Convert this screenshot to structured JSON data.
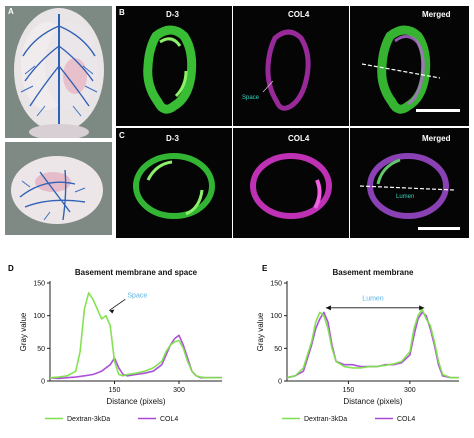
{
  "panels": {
    "A": "A",
    "B": "B",
    "C": "C",
    "D": "D",
    "E": "E"
  },
  "micro": {
    "row_b": [
      "D-3",
      "COL4",
      "Merged"
    ],
    "row_c": [
      "D-3",
      "COL4",
      "Merged"
    ],
    "space_label": "Space",
    "lumen_label": "Lumen"
  },
  "colors": {
    "dextran": "#7ee04a",
    "col4": "#a84ad6",
    "annotation": "#5ab4e6"
  },
  "chart_data": [
    {
      "type": "line",
      "title": "Basement membrane and space",
      "xlabel": "Distance (pixels)",
      "ylabel": "Gray value",
      "xlim": [
        0,
        400
      ],
      "ylim": [
        0,
        150
      ],
      "xticks": [
        150,
        300
      ],
      "yticks": [
        0,
        50,
        100,
        150
      ],
      "annotation": "Space",
      "series": [
        {
          "name": "Dextran-3kDa",
          "x": [
            0,
            20,
            40,
            60,
            70,
            80,
            90,
            100,
            110,
            120,
            130,
            140,
            150,
            160,
            170,
            180,
            200,
            220,
            240,
            260,
            270,
            280,
            290,
            300,
            310,
            320,
            330,
            340,
            350,
            360,
            380,
            400
          ],
          "y": [
            5,
            6,
            8,
            15,
            45,
            110,
            135,
            125,
            110,
            95,
            100,
            85,
            30,
            10,
            8,
            10,
            12,
            15,
            20,
            30,
            45,
            55,
            60,
            62,
            50,
            30,
            15,
            8,
            6,
            5,
            5,
            5
          ]
        },
        {
          "name": "COL4",
          "x": [
            0,
            20,
            40,
            60,
            80,
            100,
            120,
            140,
            150,
            160,
            170,
            180,
            200,
            220,
            240,
            260,
            270,
            280,
            290,
            300,
            310,
            320,
            330,
            340,
            350,
            360,
            380,
            400
          ],
          "y": [
            5,
            4,
            5,
            6,
            8,
            10,
            15,
            25,
            35,
            20,
            10,
            8,
            10,
            12,
            15,
            25,
            40,
            55,
            65,
            70,
            55,
            35,
            15,
            8,
            5,
            5,
            5,
            5
          ]
        }
      ],
      "legend": "bottom"
    },
    {
      "type": "line",
      "title": "Basement membrane",
      "xlabel": "Distance (pixels)",
      "ylabel": "Gray value",
      "xlim": [
        0,
        420
      ],
      "ylim": [
        0,
        150
      ],
      "xticks": [
        150,
        300
      ],
      "yticks": [
        0,
        50,
        100,
        150
      ],
      "annotation": "Lumen",
      "series": [
        {
          "name": "Dextran-3kDa",
          "x": [
            0,
            20,
            40,
            60,
            70,
            80,
            90,
            100,
            110,
            120,
            140,
            160,
            180,
            200,
            220,
            240,
            260,
            280,
            300,
            310,
            320,
            330,
            340,
            350,
            360,
            370,
            380,
            400,
            420
          ],
          "y": [
            5,
            8,
            20,
            60,
            90,
            105,
            100,
            80,
            50,
            30,
            22,
            20,
            20,
            22,
            22,
            24,
            26,
            30,
            45,
            80,
            100,
            110,
            95,
            85,
            60,
            30,
            10,
            5,
            5
          ]
        },
        {
          "name": "COL4",
          "x": [
            0,
            20,
            40,
            60,
            70,
            80,
            90,
            100,
            110,
            120,
            140,
            160,
            180,
            200,
            220,
            240,
            260,
            280,
            300,
            310,
            320,
            330,
            340,
            350,
            360,
            370,
            380,
            400,
            420
          ],
          "y": [
            5,
            8,
            15,
            55,
            80,
            95,
            105,
            90,
            55,
            30,
            25,
            25,
            22,
            22,
            22,
            25,
            25,
            28,
            40,
            70,
            95,
            105,
            100,
            80,
            55,
            25,
            8,
            5,
            5
          ]
        }
      ],
      "legend": "bottom"
    }
  ]
}
